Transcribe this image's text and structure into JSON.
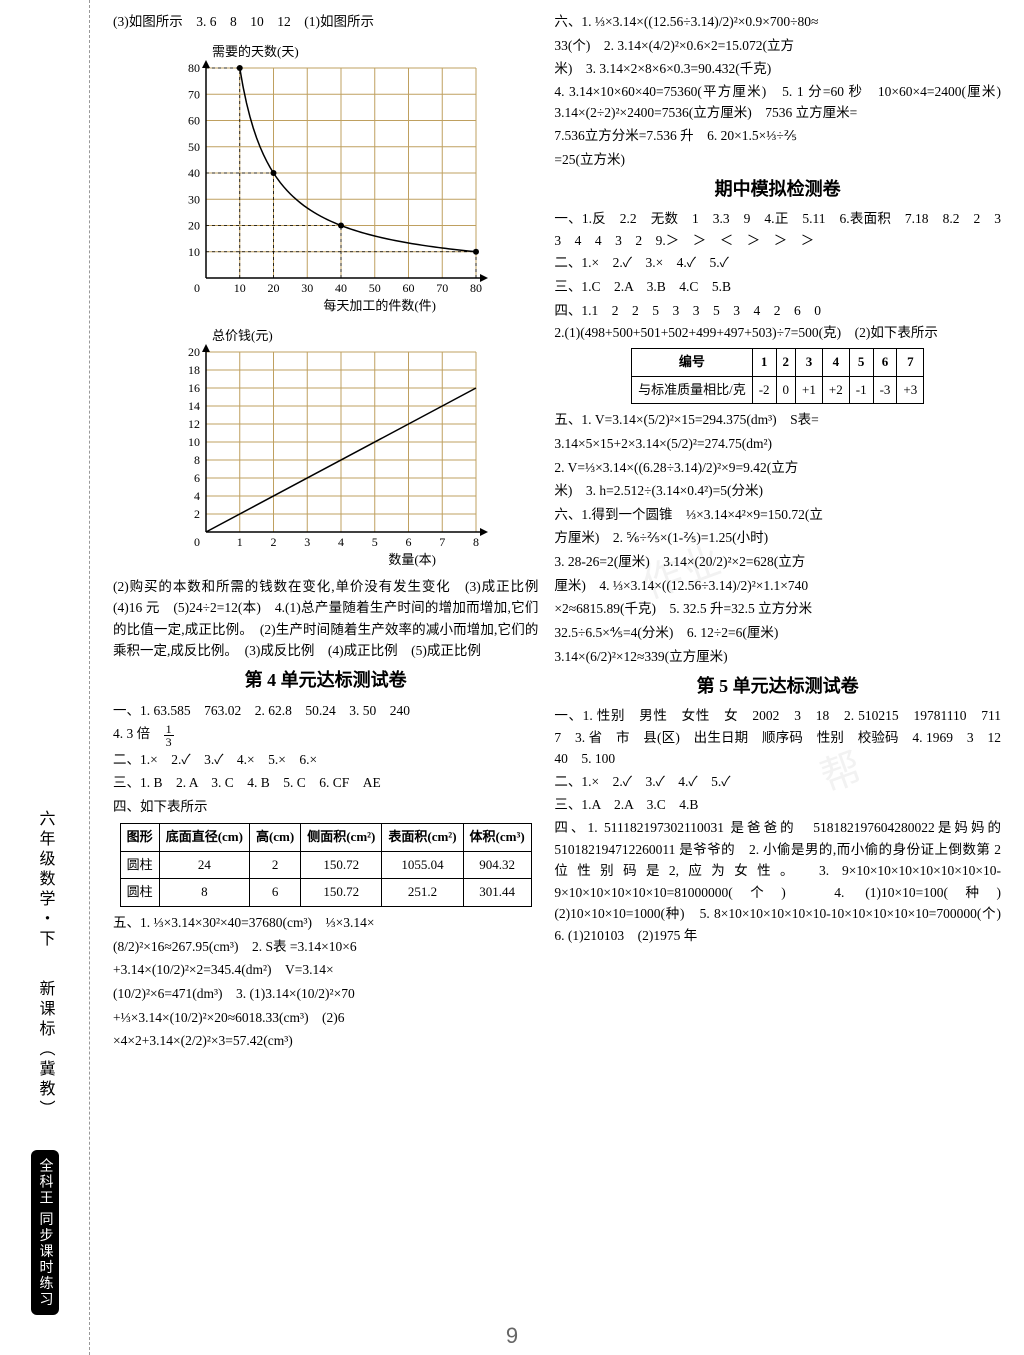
{
  "margin": {
    "subject": "六年级数学・下",
    "standard": "新课标（冀教）",
    "brand": "全科王 同步课时练习"
  },
  "leftColumn": {
    "topLine": "(3)如图所示　3. 6　8　10　12　(1)如图所示",
    "chart1": {
      "y_label": "需要的天数(天)",
      "x_label": "每天加工的件数(件)",
      "y_max": 80,
      "y_step": 10,
      "x_max": 80,
      "x_step": 10,
      "points": [
        [
          10,
          80
        ],
        [
          20,
          40
        ],
        [
          40,
          20
        ],
        [
          80,
          10
        ]
      ],
      "grid_color": "#bfa060",
      "axis_color": "#000000"
    },
    "chart2": {
      "y_label": "总价钱(元)",
      "x_label": "数量(本)",
      "y_max": 20,
      "y_step": 2,
      "x_max": 8,
      "x_step": 1,
      "line": [
        [
          0,
          0
        ],
        [
          8,
          16
        ]
      ],
      "grid_color": "#bfa060",
      "axis_color": "#000000"
    },
    "para1": "(2)购买的本数和所需的钱数在变化,单价没有发生变化　(3)成正比例　(4)16 元　(5)24÷2=12(本)　4.(1)总产量随着生产时间的增加而增加,它们的比值一定,成正比例。　(2)生产时间随着生产效率的减小而增加,它们的乘积一定,成反比例。　(3)成反比例　(4)成正比例　(5)成正比例",
    "title4": "第 4 单元达标测试卷",
    "u4_1": "一、1. 63.585　763.02　2. 62.8　50.24　3. 50　240",
    "u4_1b": "4. 3 倍　",
    "u4_2": "二、1.×　2.✓　3.✓　4.×　5.×　6.×",
    "u4_3": "三、1. B　2. A　3. C　4. B　5. C　6. CF　AE",
    "u4_4_intro": "四、如下表所示",
    "table4": {
      "headers": [
        "图形",
        "底面直径(cm)",
        "高(cm)",
        "侧面积(cm²)",
        "表面积(cm²)",
        "体积(cm³)"
      ],
      "rows": [
        [
          "圆柱",
          "24",
          "2",
          "150.72",
          "1055.04",
          "904.32"
        ],
        [
          "圆柱",
          "8",
          "6",
          "150.72",
          "251.2",
          "301.44"
        ]
      ]
    },
    "u4_5a": "五、1. ⅓×3.14×30²×40=37680(cm³)　⅓×3.14×",
    "u4_5b": "(8/2)²×16≈267.95(cm³)　2. S表 =3.14×10×6",
    "u4_5c": "+3.14×(10/2)²×2=345.4(dm²)　V=3.14×",
    "u4_5d": "(10/2)²×6=471(dm³)　3. (1)3.14×(10/2)²×70",
    "u4_5e": "+⅓×3.14×(10/2)²×20≈6018.33(cm³)　(2)6",
    "u4_5f": "×4×2+3.14×(2/2)²×3=57.42(cm³)"
  },
  "rightColumn": {
    "u4_6a": "六、1. ⅓×3.14×((12.56÷3.14)/2)²×0.9×700÷80≈",
    "u4_6b": "33(个)　2. 3.14×(4/2)²×0.6×2=15.072(立方",
    "u4_6c": "米)　3. 3.14×2×8×6×0.3=90.432(千克)",
    "u4_6d": "4. 3.14×10×60×40=75360(平方厘米)　5. 1 分=60 秒　10×60×4=2400(厘米)　3.14×(2÷2)²×2400=7536(立方厘米)　7536 立方厘米=",
    "u4_6e": "7.536立方分米=7.536 升　6. 20×1.5×⅓÷⅖",
    "u4_6f": "=25(立方米)",
    "titleMid": "期中模拟检测卷",
    "mid_1": "一、1.反　2.2　无数　1　3.3　9　4.正　5.11　6.表面积　7.18　8.2　2　3　3　4　4　3　2　9.＞　＞　＜　＞　＞　＞",
    "mid_2": "二、1.×　2.✓　3.×　4.✓　5.✓",
    "mid_3": "三、1.C　2.A　3.B　4.C　5.B",
    "mid_4a": "四、1.1　2　2　5　3　3　5　3　4　2　6　0",
    "mid_4b": "2.(1)(498+500+501+502+499+497+503)÷7=500(克)　(2)如下表所示",
    "tableMid": {
      "headers": [
        "编号",
        "1",
        "2",
        "3",
        "4",
        "5",
        "6",
        "7"
      ],
      "rows": [
        [
          "与标准质量相比/克",
          "-2",
          "0",
          "+1",
          "+2",
          "-1",
          "-3",
          "+3"
        ]
      ]
    },
    "mid_5a": "五、1. V=3.14×(5/2)²×15=294.375(dm³)　S表=",
    "mid_5b": "3.14×5×15+2×3.14×(5/2)²=274.75(dm²)",
    "mid_5c": "2. V=⅓×3.14×((6.28÷3.14)/2)²×9=9.42(立方",
    "mid_5d": "米)　3. h=2.512÷(3.14×0.4²)=5(分米)",
    "mid_6a": "六、1.得到一个圆锥　⅓×3.14×4²×9=150.72(立",
    "mid_6b": "方厘米)　2. ⅚÷⅖×(1-⅖)=1.25(小时)",
    "mid_6c": "3. 28-26=2(厘米)　3.14×(20/2)²×2=628(立方",
    "mid_6d": "厘米)　4. ⅓×3.14×((12.56÷3.14)/2)²×1.1×740",
    "mid_6e": "×2≈6815.89(千克)　5. 32.5 升=32.5 立方分米",
    "mid_6f": "32.5÷6.5×⅘=4(分米)　6. 12÷2=6(厘米)",
    "mid_6g": "3.14×(6/2)²×12≈339(立方厘米)",
    "title5": "第 5 单元达标测试卷",
    "u5_1": "一、1. 性别　男性　女性　女　2002　3　18　2. 510215　19781110　711　7　3. 省　市　县(区)　出生日期　顺序码　性别　校验码　4. 1969　3　12　40　5. 100",
    "u5_2": "二、1.×　2.✓　3.✓　4.✓　5.✓",
    "u5_3": "三、1.A　2.A　3.C　4.B",
    "u5_4": "四、1. 511182197302110031 是爸爸的　518182197604280022是妈妈的　510182194712260011 是爷爷的　2. 小偷是男的,而小偷的身份证上倒数第 2 位性别码是2,应为女性。　3. 9×10×10×10×10×10×10×10-9×10×10×10×10×10=81000000(个)　4. (1)10×10=100(种)　(2)10×10×10=1000(种)　5. 8×10×10×10×10×10-10×10×10×10×10=700000(个)　6. (1)210103　(2)1975 年"
  },
  "pageNumber": "9"
}
